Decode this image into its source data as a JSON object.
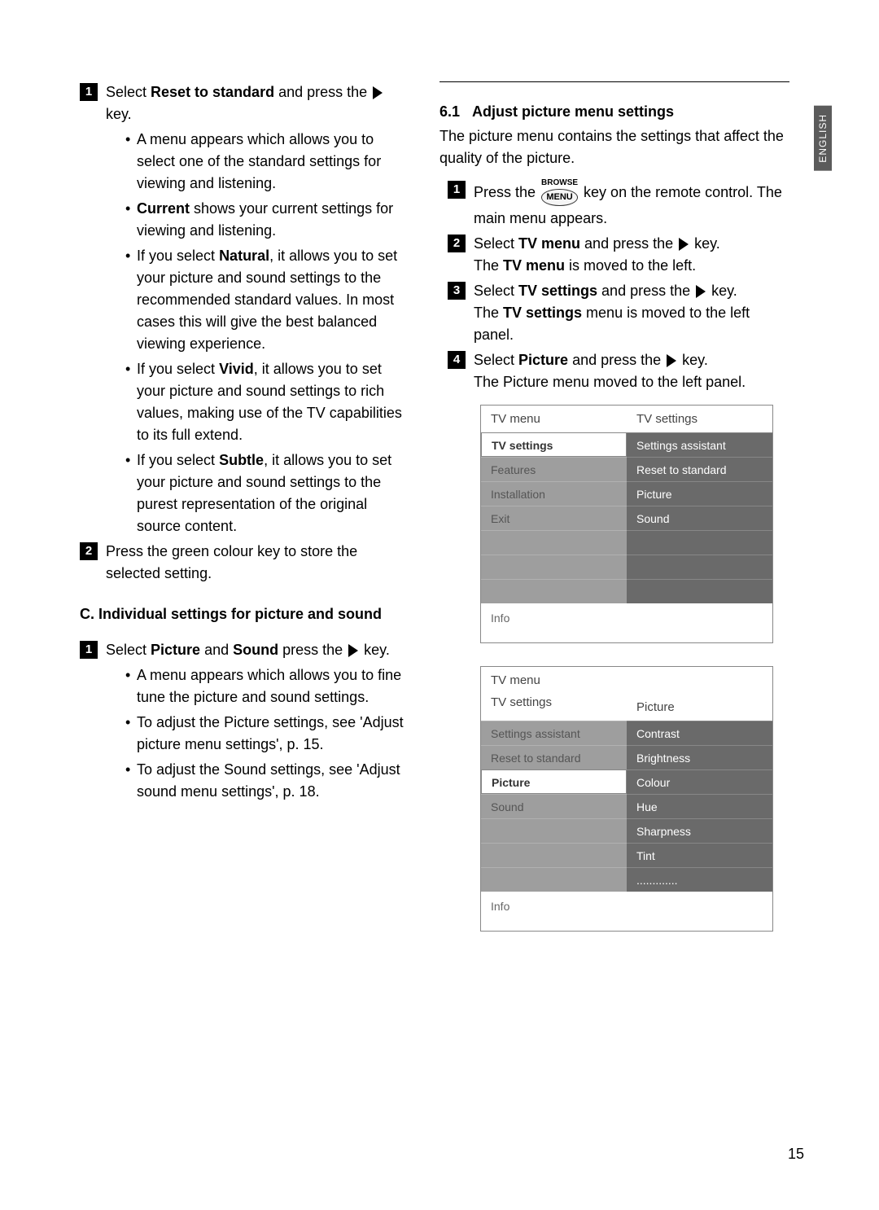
{
  "language_tab": "ENGLISH",
  "page_number": "15",
  "left": {
    "step1": {
      "pre": "Select ",
      "bold": "Reset to standard",
      "post": " and press the ",
      "tail": " key."
    },
    "bullet1": "A menu appears which allows you to select one of the standard settings for viewing and listening.",
    "bullet2_pre": "",
    "bullet2_bold": "Current",
    "bullet2_post": " shows your current settings for viewing and listening.",
    "bullet3_pre": "If you select ",
    "bullet3_bold": "Natural",
    "bullet3_post": ", it allows you to set your picture and sound settings to the recommended standard values. In most cases this will give the best balanced viewing experience.",
    "bullet4_pre": "If you select ",
    "bullet4_bold": "Vivid",
    "bullet4_post": ", it allows you to set your picture and sound settings to rich values, making use of the TV capabilities to its full extend.",
    "bullet5_pre": "If you select ",
    "bullet5_bold": "Subtle",
    "bullet5_post": ", it allows you to set your picture and sound settings to the purest representation of the original source content.",
    "step2": "Press the green colour key to store the selected setting.",
    "section_c_title": "C. Individual settings for picture and sound",
    "c_step1_pre": "Select ",
    "c_step1_b1": "Picture",
    "c_step1_mid": " and ",
    "c_step1_b2": "Sound",
    "c_step1_post": " press the ",
    "c_step1_tail": " key.",
    "c_bullet1": "A menu appears which allows you to fine tune the picture and sound settings.",
    "c_bullet2": "To adjust the Picture settings, see 'Adjust picture menu settings', p. 15.",
    "c_bullet3": "To adjust the Sound settings, see 'Adjust sound menu settings', p. 18."
  },
  "right": {
    "section_num": "6.1",
    "section_title": "Adjust picture menu settings",
    "intro": "The picture menu contains the settings that affect the quality of the picture.",
    "browse_label": "BROWSE",
    "menu_key": "MENU",
    "s1_pre": "Press the ",
    "s1_post": " key on the remote control. The main menu appears.",
    "s2_pre": "Select ",
    "s2_b": "TV menu",
    "s2_post": " and press the ",
    "s2_tail": " key.",
    "s2_line2_pre": "The ",
    "s2_line2_b": "TV menu",
    "s2_line2_post": " is moved to the left.",
    "s3_pre": "Select ",
    "s3_b": "TV settings",
    "s3_post": " and press the ",
    "s3_tail": " key.",
    "s3_line2_pre": "The ",
    "s3_line2_b": "TV settings",
    "s3_line2_post": " menu is moved to the left panel.",
    "s4_pre": "Select ",
    "s4_b": "Picture",
    "s4_post": " and press the ",
    "s4_tail": " key.",
    "s4_line2": "The Picture menu moved to the left panel."
  },
  "diagram1": {
    "title_left": "TV menu",
    "title_right": "TV settings",
    "left_items": [
      "TV settings",
      "Features",
      "Installation",
      "Exit",
      "",
      "",
      ""
    ],
    "left_selected_index": 0,
    "right_items": [
      "Settings assistant",
      "Reset to standard",
      "Picture",
      "Sound",
      "",
      "",
      ""
    ],
    "info": "Info"
  },
  "diagram2": {
    "title_left": "TV menu",
    "sub_left": "TV settings",
    "title_right": "Picture",
    "left_items": [
      "Settings assistant",
      "Reset to standard",
      "Picture",
      "Sound",
      "",
      "",
      ""
    ],
    "left_selected_index": 2,
    "right_items": [
      "Contrast",
      "Brightness",
      "Colour",
      "Hue",
      "Sharpness",
      "Tint",
      "............."
    ],
    "info": "Info"
  }
}
